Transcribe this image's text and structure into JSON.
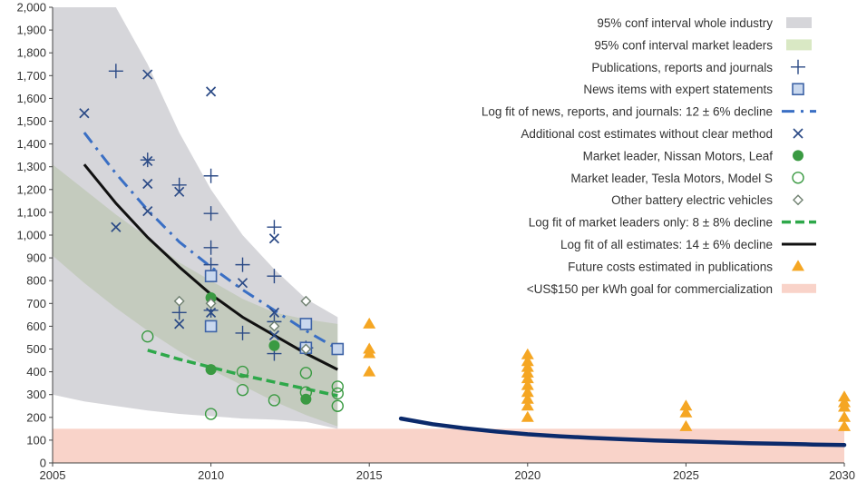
{
  "chart_data": {
    "type": "scatter",
    "title": "",
    "xlabel": "",
    "ylabel": "",
    "xlim": [
      2005,
      2030
    ],
    "ylim": [
      0,
      2000
    ],
    "x_ticks": [
      "2005",
      "2010",
      "2015",
      "2020",
      "2025",
      "2030"
    ],
    "y_ticks": [
      "0",
      "100",
      "200",
      "300",
      "400",
      "500",
      "600",
      "700",
      "800",
      "900",
      "1,000",
      "1,100",
      "1,200",
      "1,300",
      "1,400",
      "1,500",
      "1,600",
      "1,700",
      "1,800",
      "1,900",
      "2,000"
    ],
    "grid": false,
    "legend_position": "top-right",
    "colors": {
      "industry_band": "#d6d6da",
      "leader_band": "#d9e8c4",
      "overlap_band": "#a9ae98",
      "blue_marker": "#2b4a86",
      "news_fill": "#c9d8ee",
      "news_stroke": "#3e63a6",
      "dashdot": "#3a6fc4",
      "green": "#3a9a42",
      "green_dash": "#2ea84a",
      "diamond": "#6f8070",
      "black": "#111111",
      "triangle": "#f5a623",
      "goal": "#f9d3c9",
      "navy_line": "#0b2a6b"
    },
    "legend": [
      {
        "label": "95% conf interval whole industry",
        "key": "industry_band"
      },
      {
        "label": "95% conf interval market leaders",
        "key": "leader_band"
      },
      {
        "label": "Publications, reports and journals",
        "key": "plus"
      },
      {
        "label": "News items with expert statements",
        "key": "square"
      },
      {
        "label": "Log fit of news, reports, and journals: 12 ± 6% decline",
        "key": "dashdot"
      },
      {
        "label": "Additional cost estimates without clear method",
        "key": "cross"
      },
      {
        "label": "Market leader, Nissan Motors, Leaf",
        "key": "filled_circle"
      },
      {
        "label": "Market leader, Tesla Motors, Model S",
        "key": "open_circle"
      },
      {
        "label": "Other battery electric vehicles",
        "key": "diamond"
      },
      {
        "label": "Log fit of market leaders only: 8 ± 8% decline",
        "key": "green_dash"
      },
      {
        "label": "Log fit of all estimates: 14 ± 6% decline",
        "key": "black_line"
      },
      {
        "label": "Future costs estimated in publications",
        "key": "triangle"
      },
      {
        "label": "<US$150 per kWh goal for commercialization",
        "key": "goal"
      }
    ],
    "goal_value": 150,
    "bands": {
      "industry": {
        "x": [
          2005,
          2006,
          2007,
          2008,
          2009,
          2010,
          2011,
          2012,
          2013,
          2014
        ],
        "upper": [
          2000,
          2000,
          2000,
          1750,
          1450,
          1200,
          1000,
          850,
          720,
          640
        ],
        "lower": [
          300,
          270,
          250,
          230,
          215,
          205,
          195,
          190,
          180,
          150
        ]
      },
      "leaders": {
        "x": [
          2005,
          2006,
          2007,
          2008,
          2009,
          2010,
          2011,
          2012,
          2013,
          2014
        ],
        "upper": [
          1310,
          1200,
          1090,
          990,
          880,
          800,
          720,
          660,
          630,
          610
        ],
        "lower": [
          910,
          790,
          680,
          580,
          490,
          410,
          340,
          270,
          210,
          160
        ]
      }
    },
    "series": [
      {
        "name": "Publications, reports and journals",
        "marker": "plus",
        "points": [
          [
            2007,
            1720
          ],
          [
            2008,
            1330
          ],
          [
            2009,
            1220
          ],
          [
            2009,
            660
          ],
          [
            2010,
            1260
          ],
          [
            2010,
            1095
          ],
          [
            2010,
            945
          ],
          [
            2010,
            870
          ],
          [
            2010,
            670
          ],
          [
            2011,
            870
          ],
          [
            2011,
            570
          ],
          [
            2012,
            1035
          ],
          [
            2012,
            820
          ],
          [
            2012,
            620
          ],
          [
            2012,
            480
          ],
          [
            2013,
            505
          ]
        ]
      },
      {
        "name": "News items with expert statements",
        "marker": "square",
        "points": [
          [
            2010,
            820
          ],
          [
            2010,
            600
          ],
          [
            2013,
            610
          ],
          [
            2013,
            505
          ],
          [
            2014,
            500
          ]
        ]
      },
      {
        "name": "Additional cost estimates without clear method",
        "marker": "cross",
        "points": [
          [
            2006,
            1535
          ],
          [
            2007,
            1035
          ],
          [
            2008,
            1705
          ],
          [
            2008,
            1325
          ],
          [
            2008,
            1225
          ],
          [
            2008,
            1105
          ],
          [
            2009,
            1190
          ],
          [
            2009,
            610
          ],
          [
            2010,
            1630
          ],
          [
            2010,
            660
          ],
          [
            2011,
            790
          ],
          [
            2012,
            985
          ],
          [
            2012,
            660
          ],
          [
            2012,
            560
          ]
        ]
      },
      {
        "name": "Market leader, Nissan Motors, Leaf",
        "marker": "filled_circle",
        "points": [
          [
            2010,
            725
          ],
          [
            2010,
            410
          ],
          [
            2012,
            515
          ],
          [
            2013,
            280
          ]
        ]
      },
      {
        "name": "Market leader, Tesla Motors, Model S",
        "marker": "open_circle",
        "points": [
          [
            2008,
            555
          ],
          [
            2010,
            215
          ],
          [
            2011,
            400
          ],
          [
            2011,
            320
          ],
          [
            2012,
            275
          ],
          [
            2013,
            395
          ],
          [
            2013,
            310
          ],
          [
            2014,
            335
          ],
          [
            2014,
            305
          ],
          [
            2014,
            250
          ]
        ]
      },
      {
        "name": "Other battery electric vehicles",
        "marker": "diamond",
        "points": [
          [
            2009,
            710
          ],
          [
            2010,
            700
          ],
          [
            2012,
            600
          ],
          [
            2013,
            710
          ],
          [
            2013,
            500
          ]
        ]
      },
      {
        "name": "Future costs estimated in publications",
        "marker": "triangle",
        "points": [
          [
            2015,
            610
          ],
          [
            2015,
            500
          ],
          [
            2015,
            480
          ],
          [
            2015,
            400
          ],
          [
            2020,
            475
          ],
          [
            2020,
            445
          ],
          [
            2020,
            420
          ],
          [
            2020,
            395
          ],
          [
            2020,
            370
          ],
          [
            2020,
            340
          ],
          [
            2020,
            310
          ],
          [
            2020,
            280
          ],
          [
            2020,
            250
          ],
          [
            2020,
            200
          ],
          [
            2025,
            250
          ],
          [
            2025,
            220
          ],
          [
            2025,
            160
          ],
          [
            2030,
            290
          ],
          [
            2030,
            265
          ],
          [
            2030,
            245
          ],
          [
            2030,
            200
          ],
          [
            2030,
            160
          ]
        ]
      }
    ],
    "lines": [
      {
        "name": "Log fit of news, reports, and journals: 12 ± 6% decline",
        "style": "dashdot",
        "x": [
          2006,
          2007,
          2008,
          2009,
          2010,
          2011,
          2012,
          2013,
          2014
        ],
        "y": [
          1450,
          1270,
          1110,
          970,
          860,
          760,
          670,
          580,
          500
        ]
      },
      {
        "name": "Log fit of market leaders only: 8 ± 8% decline",
        "style": "green_dash",
        "x": [
          2008,
          2009,
          2010,
          2011,
          2012,
          2013,
          2014
        ],
        "y": [
          495,
          455,
          420,
          385,
          355,
          325,
          295
        ]
      },
      {
        "name": "Log fit of all estimates: 14 ± 6% decline",
        "style": "black_line",
        "x": [
          2006,
          2007,
          2008,
          2009,
          2010,
          2011,
          2012,
          2013,
          2014
        ],
        "y": [
          1310,
          1140,
          990,
          860,
          740,
          640,
          560,
          480,
          410
        ]
      },
      {
        "name": "",
        "style": "navy_line",
        "x": [
          2016,
          2017,
          2018,
          2019,
          2020,
          2021,
          2022,
          2023,
          2024,
          2025,
          2026,
          2027,
          2028,
          2029,
          2030
        ],
        "y": [
          195,
          170,
          152,
          138,
          126,
          117,
          110,
          104,
          99,
          95,
          91,
          87,
          84,
          81,
          79
        ]
      }
    ]
  }
}
